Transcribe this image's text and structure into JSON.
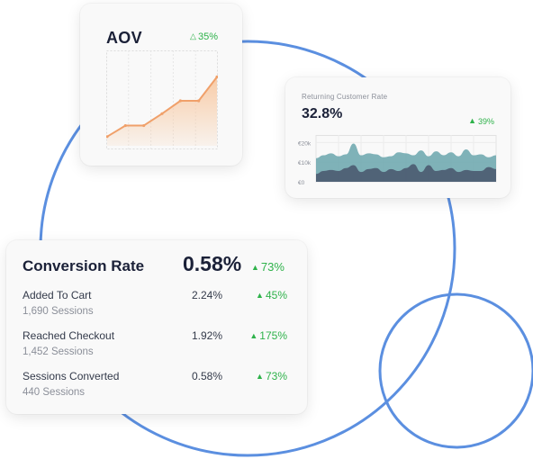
{
  "colors": {
    "ring": "#5b8fe0",
    "up": "#2eb24a",
    "aov_line": "#f0a06a",
    "aov_fill": "#f7c9a3",
    "rcr_back": "#6aa6ad",
    "rcr_front": "#4b5a70"
  },
  "aov": {
    "title": "AOV",
    "change": "35%",
    "change_icon": "triangle-up-outline-icon"
  },
  "returning_customer": {
    "title": "Returning Customer Rate",
    "value": "32.8%",
    "change": "39%",
    "change_icon": "triangle-up-icon",
    "y_ticks": [
      "€20k",
      "€10k",
      "€0"
    ]
  },
  "conversion": {
    "title": "Conversion Rate",
    "value": "0.58%",
    "change": "73%",
    "rows": [
      {
        "label": "Added To Cart",
        "sessions": "1,690 Sessions",
        "rate": "2.24%",
        "change": "45%"
      },
      {
        "label": "Reached Checkout",
        "sessions": "1,452 Sessions",
        "rate": "1.92%",
        "change": "175%"
      },
      {
        "label": "Sessions Converted",
        "sessions": "440 Sessions",
        "rate": "0.58%",
        "change": "73%"
      }
    ]
  },
  "chart_data": [
    {
      "type": "area",
      "title": "AOV",
      "x": [
        1,
        2,
        3,
        4,
        5,
        6,
        7
      ],
      "values": [
        10,
        22,
        22,
        35,
        49,
        49,
        75
      ],
      "ylim": [
        0,
        100
      ],
      "grid": true
    },
    {
      "type": "area",
      "title": "Returning Customer Rate",
      "ylabel": "",
      "y_ticks": [
        "€20k",
        "€10k",
        "€0"
      ],
      "ylim": [
        0,
        22000
      ],
      "series": [
        {
          "values": [
            12000,
            13500,
            14500,
            13000,
            14000,
            19500,
            13500,
            14500,
            14000,
            12500,
            13000,
            15000,
            14500,
            13500,
            16000,
            13000,
            15500,
            13500,
            15000,
            13000,
            16500,
            13500,
            14000,
            12500,
            13500
          ]
        },
        {
          "values": [
            4000,
            5500,
            6000,
            5500,
            7000,
            8500,
            5000,
            6500,
            7000,
            5000,
            6500,
            5500,
            7000,
            9000,
            5000,
            8500,
            5500,
            6000,
            7000,
            5000,
            6000,
            5500,
            5500,
            7500,
            6500
          ]
        }
      ],
      "grid": true
    }
  ]
}
